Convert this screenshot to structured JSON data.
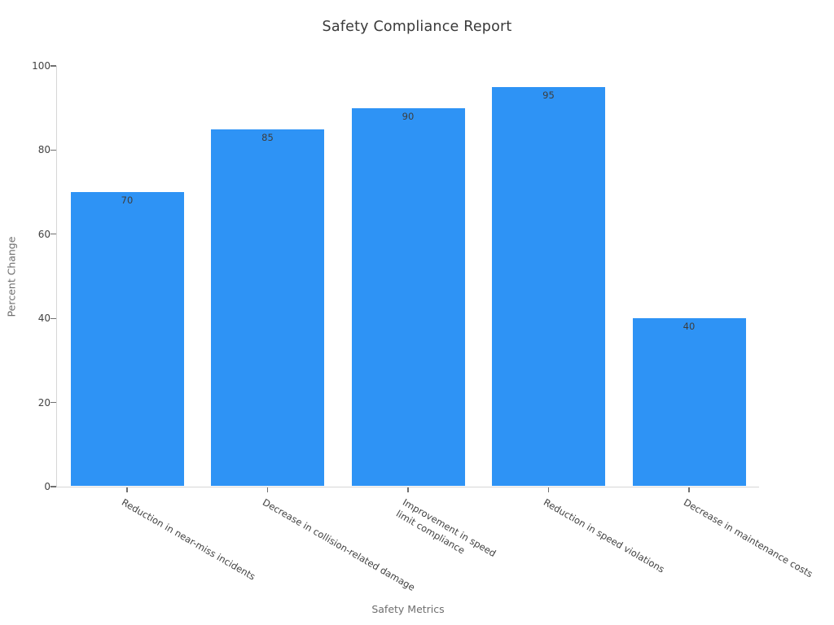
{
  "chart_data": {
    "type": "bar",
    "title": "Safety Compliance Report",
    "xlabel": "Safety Metrics",
    "ylabel": "Percent Change",
    "categories": [
      "Reduction in near-miss incidents",
      "Decrease in collision-related damage",
      "Improvement in speed\nlimit compliance",
      "Reduction in speed violations",
      "Decrease in maintenance costs"
    ],
    "values": [
      70,
      85,
      90,
      95,
      40
    ],
    "value_labels": [
      "70",
      "85",
      "90",
      "95",
      "40"
    ],
    "value_label_position": "inside-top",
    "ylim": [
      0,
      100
    ],
    "yticks": [
      0,
      20,
      40,
      60,
      80,
      100
    ],
    "grid": false,
    "legend_position": "none",
    "x_tick_rotation_deg": -30
  },
  "colors": {
    "background": "#FFFFFF",
    "bar": "#2E93F5",
    "title_text": "#3A3A3A",
    "axis_label_text": "#6E6E6E",
    "tick_label_text": "#424242",
    "value_label_text": "#3D3D3D",
    "spine": "#D6D6D6",
    "tick_mark": "#707070"
  }
}
